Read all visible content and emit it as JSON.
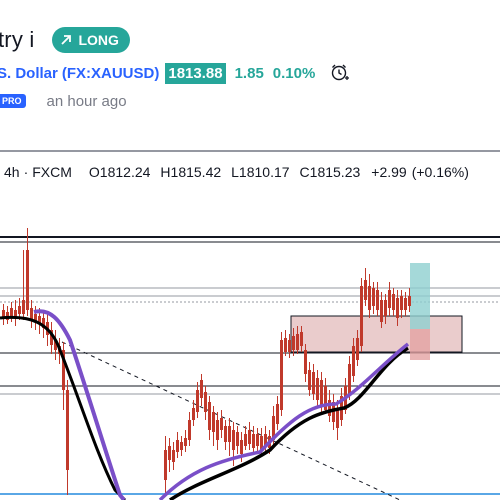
{
  "header": {
    "title_fragment": "try i",
    "badge_label": "LONG",
    "symbol_name": "S. Dollar",
    "symbol_ticker": "(FX:XAUUSD)",
    "price": "1813.88",
    "change": "1.85",
    "change_pct": "0.10%",
    "pro_label": "PRO",
    "time_ago": "an hour ago"
  },
  "legend": {
    "interval": "4h",
    "separator": "·",
    "source": "FXCM",
    "open": "O1812.24",
    "high": "H1815.42",
    "low": "L1810.17",
    "close": "C1815.23",
    "change": "+2.99",
    "change_pct": "(+0.16%)"
  },
  "colors": {
    "up": "#26a69a",
    "accent_blue": "#2962ff",
    "candle_green": "#1e6fb7",
    "candle_red": "#c0392b",
    "ma_purple": "#7a4fc8",
    "ma_black": "#000000",
    "zone_fill": "#d9a3a3",
    "tp_fill": "#8ecfcf",
    "sl_fill": "#e4a3a3"
  },
  "icons": [
    "arrow-up-right-icon",
    "alarm-clock-icon"
  ]
}
